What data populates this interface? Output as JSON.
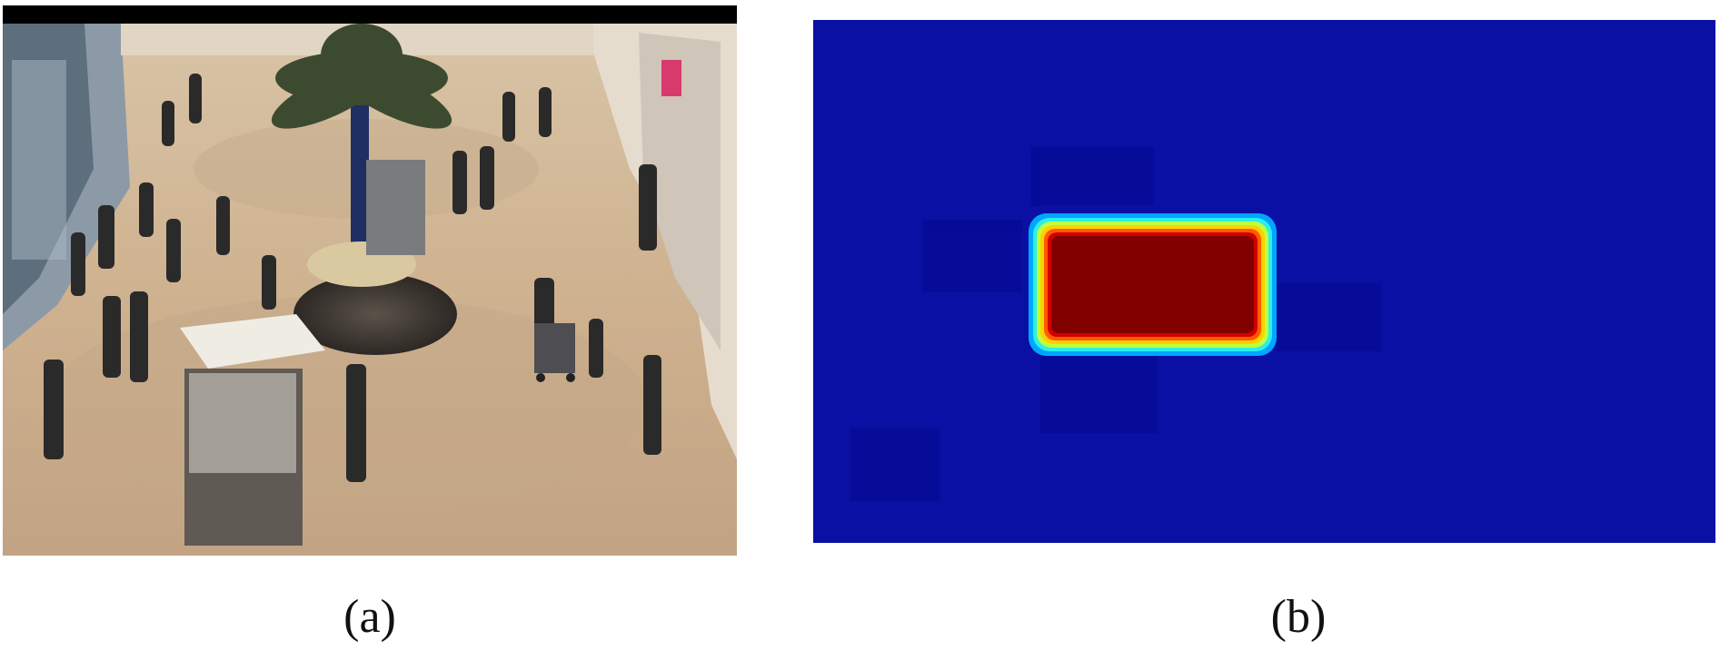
{
  "figure": {
    "panel_a": {
      "caption": "(a)"
    },
    "panel_b": {
      "caption": "(b)"
    }
  },
  "colors": {
    "heatmap_background": "#0a10a4",
    "heatmap_hot": "#800000",
    "floor": "#c9ad8c"
  }
}
